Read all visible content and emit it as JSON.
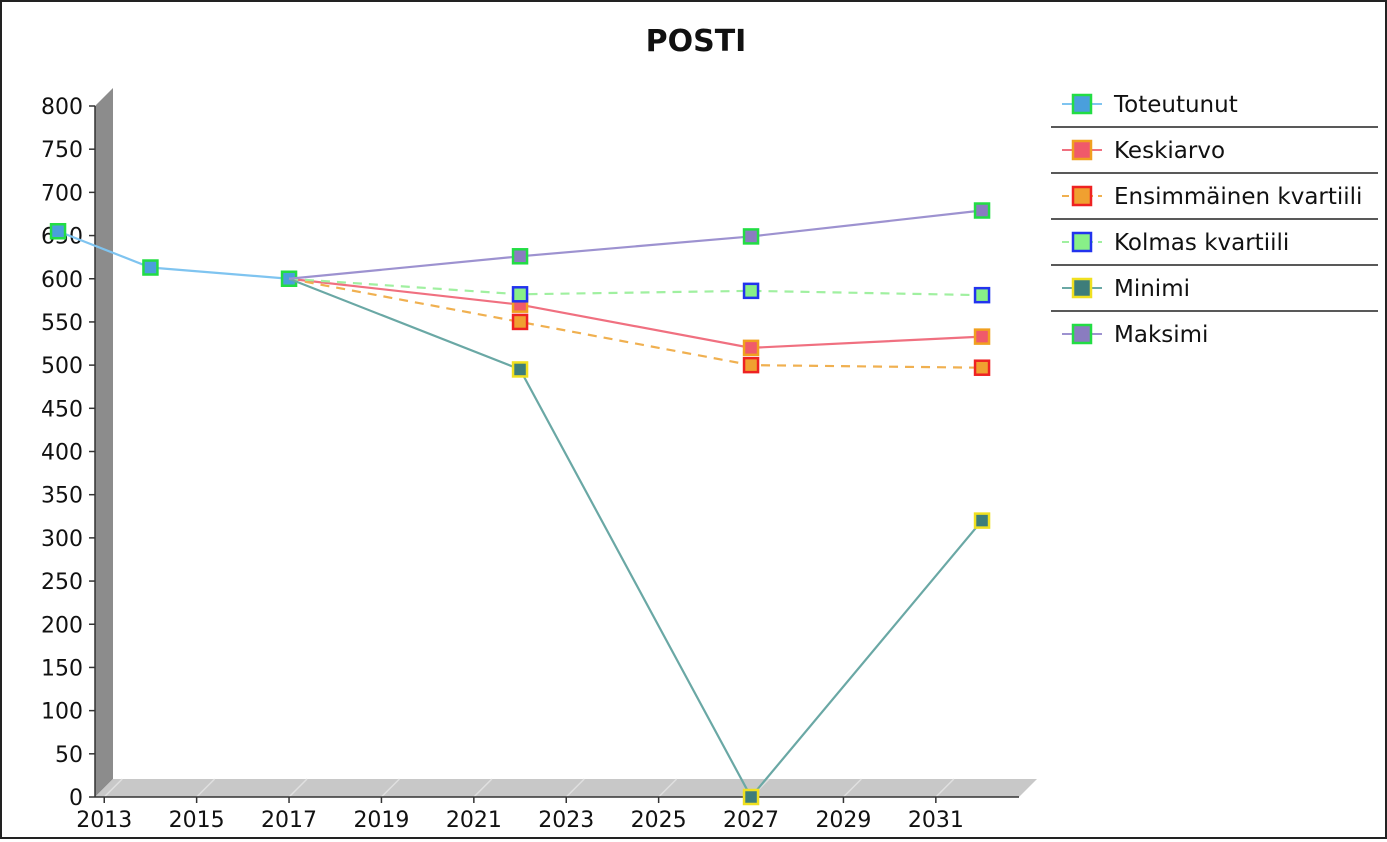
{
  "chart_data": {
    "type": "line",
    "title": "POSTI",
    "xlabel": "",
    "ylabel": "",
    "xlim": [
      2012.8,
      2032.8
    ],
    "ylim": [
      0,
      800
    ],
    "x_ticks": [
      2013,
      2015,
      2017,
      2019,
      2021,
      2023,
      2025,
      2027,
      2029,
      2031
    ],
    "y_ticks": [
      0,
      50,
      100,
      150,
      200,
      250,
      300,
      350,
      400,
      450,
      500,
      550,
      600,
      650,
      700,
      750,
      800
    ],
    "grid": false,
    "legend_position": "right",
    "series": [
      {
        "name": "Toteutunut",
        "color": "#4a9fdc",
        "line_color": "#7fc4f0",
        "marker_border": "#22dd44",
        "dashed": false,
        "points": [
          {
            "x": 2012,
            "y": 655
          },
          {
            "x": 2014,
            "y": 613
          },
          {
            "x": 2017,
            "y": 600
          }
        ]
      },
      {
        "name": "Keskiarvo",
        "color": "#f05a6a",
        "line_color": "#f07080",
        "marker_border": "#f0a020",
        "dashed": false,
        "points": [
          {
            "x": 2017,
            "y": 600
          },
          {
            "x": 2022,
            "y": 570
          },
          {
            "x": 2027,
            "y": 520
          },
          {
            "x": 2032,
            "y": 533
          }
        ]
      },
      {
        "name": "Ensimmäinen kvartiili",
        "color": "#f0a030",
        "line_color": "#f0b050",
        "marker_border": "#ee2222",
        "dashed": true,
        "points": [
          {
            "x": 2017,
            "y": 600
          },
          {
            "x": 2022,
            "y": 550
          },
          {
            "x": 2027,
            "y": 500
          },
          {
            "x": 2032,
            "y": 497
          }
        ]
      },
      {
        "name": "Kolmas kvartiili",
        "color": "#88f088",
        "line_color": "#a0f0a0",
        "marker_border": "#2233ee",
        "dashed": true,
        "points": [
          {
            "x": 2017,
            "y": 600
          },
          {
            "x": 2022,
            "y": 582
          },
          {
            "x": 2027,
            "y": 586
          },
          {
            "x": 2032,
            "y": 581
          }
        ]
      },
      {
        "name": "Minimi",
        "color": "#3d7d7a",
        "line_color": "#6aa8a5",
        "marker_border": "#f0e020",
        "dashed": false,
        "points": [
          {
            "x": 2017,
            "y": 600
          },
          {
            "x": 2022,
            "y": 495
          },
          {
            "x": 2027,
            "y": 0
          },
          {
            "x": 2032,
            "y": 320
          }
        ]
      },
      {
        "name": "Maksimi",
        "color": "#8a7cc0",
        "line_color": "#9d92d0",
        "marker_border": "#22dd44",
        "dashed": false,
        "points": [
          {
            "x": 2017,
            "y": 600
          },
          {
            "x": 2022,
            "y": 626
          },
          {
            "x": 2027,
            "y": 649
          },
          {
            "x": 2032,
            "y": 679
          }
        ]
      }
    ]
  }
}
